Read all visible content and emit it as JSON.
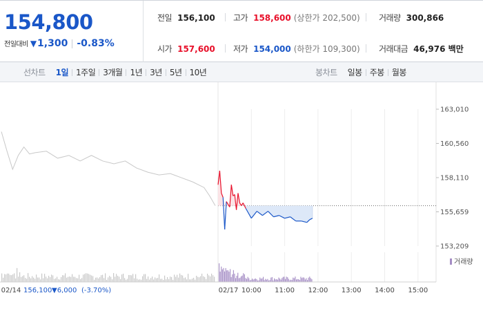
{
  "summary": {
    "price": "154,800",
    "change_label": "전일대비",
    "change_arrow": "▼",
    "change_amount": "1,300",
    "change_percent": "-0.83%",
    "prev_close": {
      "label": "전일",
      "value": "156,100"
    },
    "open": {
      "label": "시가",
      "value": "157,600"
    },
    "high": {
      "label": "고가",
      "value": "158,600",
      "sub": "(상한가 202,500)"
    },
    "low": {
      "label": "저가",
      "value": "154,000",
      "sub": "(하한가 109,300)"
    },
    "volume": {
      "label": "거래량",
      "value": "300,866"
    },
    "turnover": {
      "label": "거래대금",
      "value": "46,976 백만"
    }
  },
  "toolbar": {
    "line_label": "선차트",
    "periods": [
      "1일",
      "1주일",
      "3개월",
      "1년",
      "3년",
      "5년",
      "10년"
    ],
    "active_period": "1일",
    "candle_label": "봉차트",
    "candles": [
      "일봉",
      "주봉",
      "월봉"
    ]
  },
  "colors": {
    "up": "#e8102a",
    "down": "#1a57c8",
    "prev_day_line": "#c8c8c8",
    "volume": "#a48cc4",
    "volume_prev": "#c8c8c8",
    "fill_up": "#fbe3e6",
    "fill_down": "#dde8f8"
  },
  "chart_data": {
    "type": "line",
    "y_ticks": [
      "163,010",
      "160,560",
      "158,110",
      "155,659",
      "153,209"
    ],
    "y_tick_values": [
      163010,
      160560,
      158110,
      155659,
      153209
    ],
    "ylim": [
      153209,
      163010
    ],
    "reference_price": 156100,
    "x_labels": [
      "02/14",
      "02/17",
      "10:00",
      "11:00",
      "12:00",
      "13:00",
      "14:00",
      "15:00"
    ],
    "prev_info": {
      "date": "02/14",
      "close": "156,100",
      "change": "▼6,000",
      "pct": "(-3.70%)"
    },
    "volume_legend": "거래량",
    "prev_day_series": [
      [
        "09:00",
        161400
      ],
      [
        "09:10",
        160000
      ],
      [
        "09:20",
        158700
      ],
      [
        "09:30",
        159700
      ],
      [
        "09:40",
        160300
      ],
      [
        "09:50",
        159800
      ],
      [
        "10:00",
        159900
      ],
      [
        "10:20",
        160000
      ],
      [
        "10:40",
        159500
      ],
      [
        "11:00",
        159700
      ],
      [
        "11:20",
        159300
      ],
      [
        "11:40",
        159700
      ],
      [
        "12:00",
        159300
      ],
      [
        "12:20",
        159100
      ],
      [
        "12:40",
        159300
      ],
      [
        "13:00",
        158800
      ],
      [
        "13:20",
        158500
      ],
      [
        "13:40",
        158300
      ],
      [
        "14:00",
        158400
      ],
      [
        "14:20",
        158100
      ],
      [
        "14:40",
        157800
      ],
      [
        "15:00",
        157400
      ],
      [
        "15:10",
        156800
      ],
      [
        "15:20",
        156100
      ]
    ],
    "today_series": [
      [
        "09:00",
        157600
      ],
      [
        "09:03",
        158600
      ],
      [
        "09:06",
        157000
      ],
      [
        "09:09",
        156700
      ],
      [
        "09:12",
        154400
      ],
      [
        "09:15",
        156400
      ],
      [
        "09:18",
        156200
      ],
      [
        "09:21",
        156000
      ],
      [
        "09:24",
        157600
      ],
      [
        "09:27",
        156800
      ],
      [
        "09:30",
        156900
      ],
      [
        "09:33",
        155800
      ],
      [
        "09:36",
        157000
      ],
      [
        "09:39",
        156300
      ],
      [
        "09:42",
        156100
      ],
      [
        "09:45",
        156300
      ],
      [
        "09:50",
        155900
      ],
      [
        "10:00",
        155200
      ],
      [
        "10:10",
        155700
      ],
      [
        "10:20",
        155400
      ],
      [
        "10:30",
        155700
      ],
      [
        "10:40",
        155300
      ],
      [
        "10:50",
        155400
      ],
      [
        "11:00",
        155200
      ],
      [
        "11:10",
        155300
      ],
      [
        "11:20",
        155000
      ],
      [
        "11:30",
        155000
      ],
      [
        "11:40",
        154900
      ],
      [
        "11:45",
        155100
      ],
      [
        "11:50",
        155200
      ]
    ]
  }
}
